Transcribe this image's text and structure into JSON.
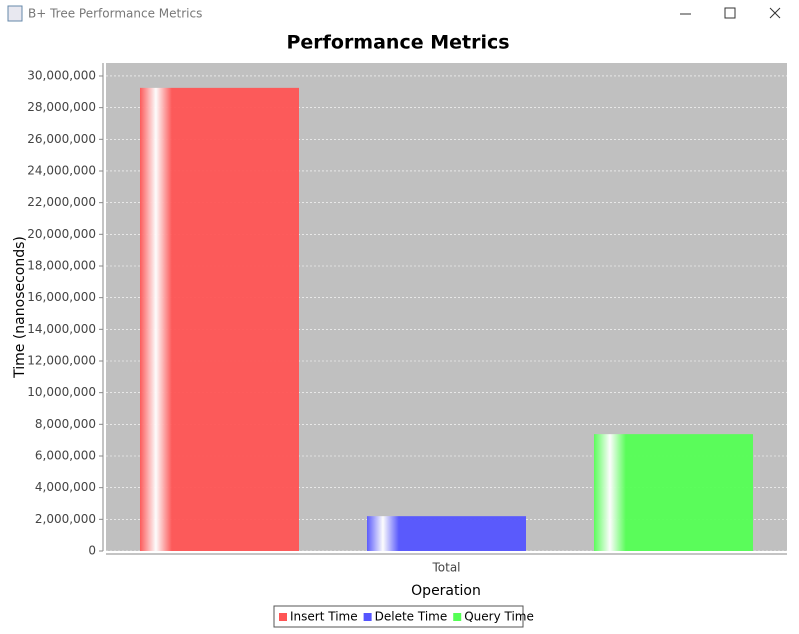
{
  "window_title": "B+ Tree Performance Metrics",
  "chart_data": {
    "type": "bar",
    "title": "Performance Metrics",
    "x_label": "Operation",
    "y_label": "Time (nanoseconds)",
    "categories": [
      "Total"
    ],
    "series": [
      {
        "name": "Insert Time",
        "color": "#ff5555",
        "values": [
          29250000
        ]
      },
      {
        "name": "Delete Time",
        "color": "#5555ff",
        "values": [
          2200000
        ]
      },
      {
        "name": "Query Time",
        "color": "#55ff55",
        "values": [
          7380000
        ]
      }
    ],
    "ylim": [
      0,
      30820000
    ],
    "yticks": [
      0,
      {
        "value": 2000000,
        "label": "2,000,000"
      },
      {
        "value": 4000000,
        "label": "4,000,000"
      },
      {
        "value": 6000000,
        "label": "6,000,000"
      },
      {
        "value": 8000000,
        "label": "8,000,000"
      },
      {
        "value": 10000000,
        "label": "10,000,000"
      },
      {
        "value": 12000000,
        "label": "12,000,000"
      },
      {
        "value": 14000000,
        "label": "14,000,000"
      },
      {
        "value": 16000000,
        "label": "16,000,000"
      },
      {
        "value": 18000000,
        "label": "18,000,000"
      },
      {
        "value": 20000000,
        "label": "20,000,000"
      },
      {
        "value": 22000000,
        "label": "22,000,000"
      },
      {
        "value": 24000000,
        "label": "24,000,000"
      },
      {
        "value": 26000000,
        "label": "26,000,000"
      },
      {
        "value": 28000000,
        "label": "28,000,000"
      },
      {
        "value": 30000000,
        "label": "30,000,000"
      }
    ],
    "grid": true,
    "legend": "bottom"
  }
}
